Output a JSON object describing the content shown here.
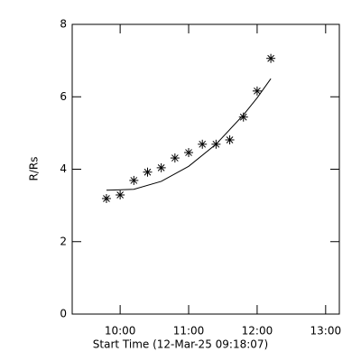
{
  "chart_data": {
    "type": "scatter",
    "xlabel": "Start Time (12-Mar-25 09:18:07)",
    "ylabel": "R/Rs",
    "xlim": [
      9.3,
      13.2
    ],
    "xticks": [
      {
        "value": 10,
        "label": "10:00"
      },
      {
        "value": 11,
        "label": "11:00"
      },
      {
        "value": 12,
        "label": "12:00"
      },
      {
        "value": 13,
        "label": "13:00"
      }
    ],
    "ylim": [
      0,
      8
    ],
    "yticks": [
      0,
      2,
      4,
      6,
      8
    ],
    "series": [
      {
        "type": "scatter",
        "marker": "asterisk",
        "color": "#000000",
        "x": [
          9.8,
          10.0,
          10.2,
          10.4,
          10.6,
          10.8,
          11.0,
          11.2,
          11.4,
          11.6,
          11.8,
          12.0,
          12.2
        ],
        "values": [
          3.19,
          3.29,
          3.69,
          3.92,
          4.04,
          4.31,
          4.46,
          4.69,
          4.69,
          4.81,
          5.44,
          6.16,
          7.06
        ]
      },
      {
        "type": "line",
        "color": "#000000",
        "x": [
          9.8,
          10.2,
          10.6,
          11.0,
          11.4,
          11.8,
          12.0,
          12.2
        ],
        "values": [
          3.42,
          3.445,
          3.665,
          4.08,
          4.69,
          5.5,
          5.97,
          6.5
        ]
      }
    ]
  }
}
